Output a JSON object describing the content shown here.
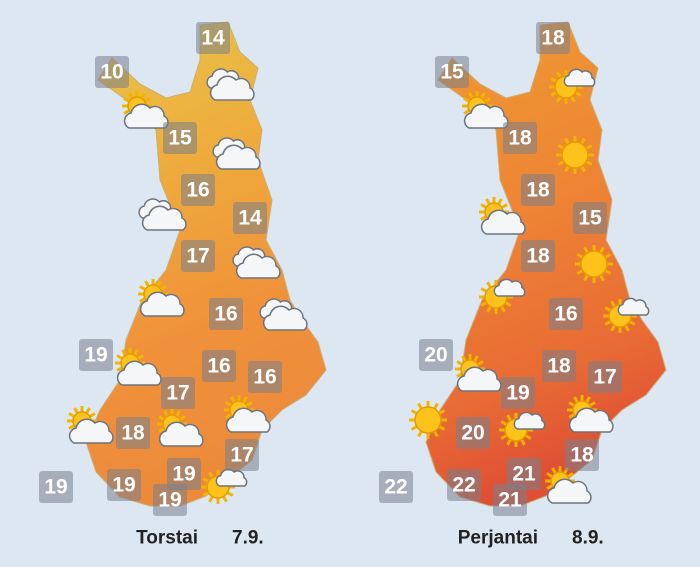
{
  "maps": [
    {
      "day": "Torstai",
      "date": "7.9.",
      "temperatures": [
        14,
        10,
        15,
        16,
        14,
        17,
        16,
        19,
        16,
        16,
        17,
        18,
        17,
        19,
        19,
        19,
        19
      ]
    },
    {
      "day": "Perjantai",
      "date": "8.9.",
      "temperatures": [
        18,
        15,
        18,
        18,
        15,
        18,
        16,
        20,
        18,
        17,
        19,
        20,
        18,
        21,
        22,
        22,
        21
      ]
    }
  ]
}
